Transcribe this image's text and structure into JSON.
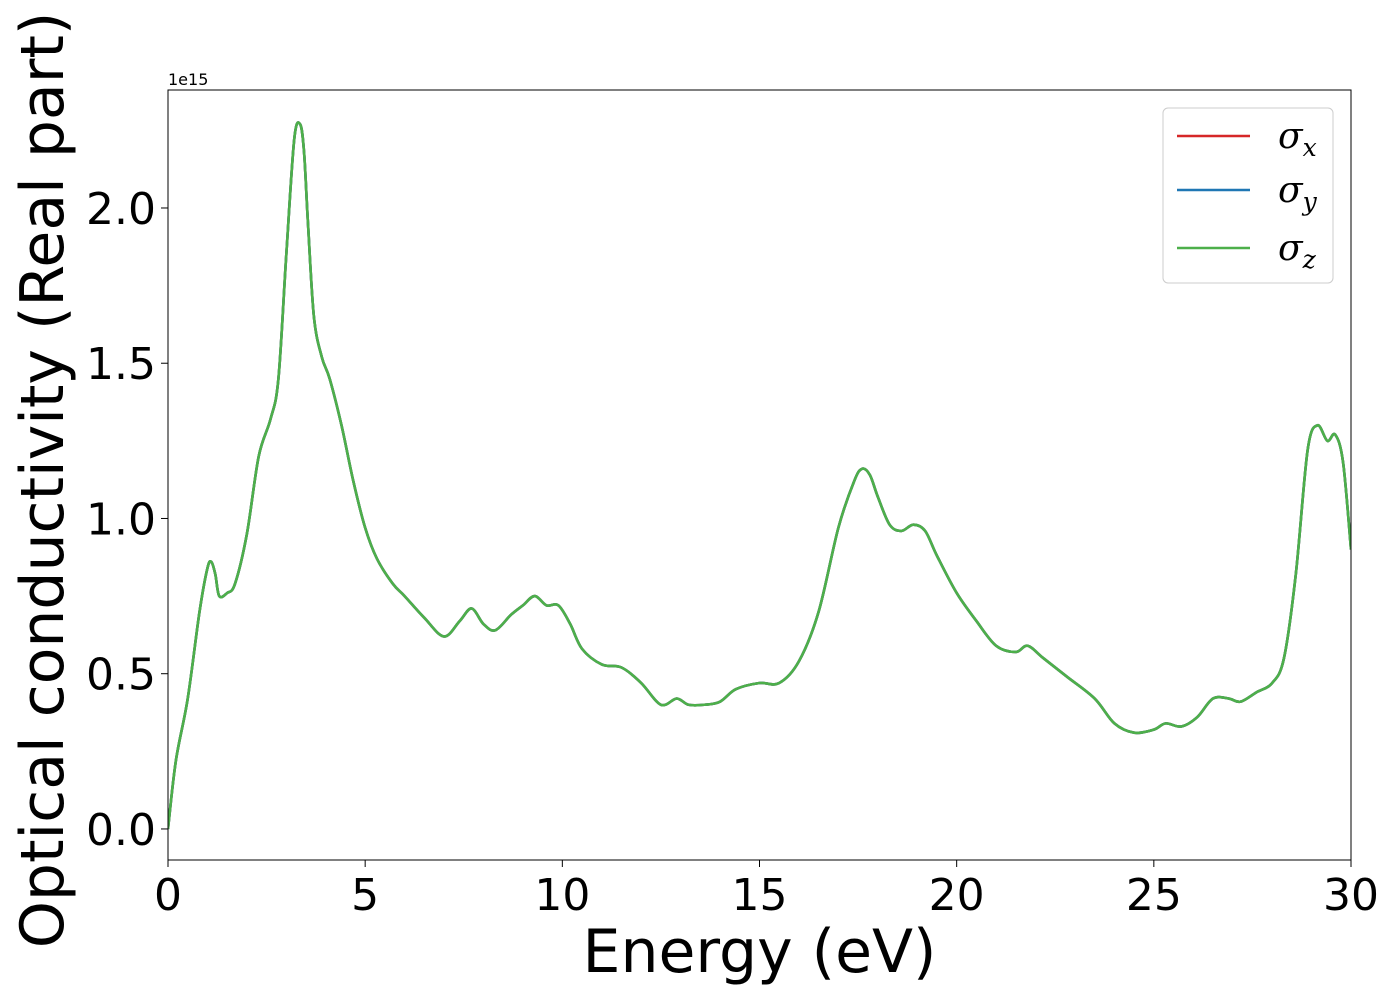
{
  "chart_data": {
    "type": "line",
    "xlabel": "Energy (eV)",
    "ylabel": "Optical conductivity (Real part)",
    "y_offset_label": "1e15",
    "xlim": [
      0,
      30
    ],
    "ylim": [
      -0.1,
      2.38
    ],
    "xticks": [
      0,
      5,
      10,
      15,
      20,
      25,
      30
    ],
    "xtick_labels": [
      "0",
      "5",
      "10",
      "15",
      "20",
      "25",
      "30"
    ],
    "yticks": [
      0.0,
      0.5,
      1.0,
      1.5,
      2.0
    ],
    "ytick_labels": [
      "0.0",
      "0.5",
      "1.0",
      "1.5",
      "2.0"
    ],
    "grid": false,
    "legend_position": "top-right",
    "x": [
      0,
      0.2,
      0.5,
      0.8,
      1.0,
      1.1,
      1.2,
      1.3,
      1.5,
      1.7,
      2.0,
      2.3,
      2.6,
      2.8,
      3.0,
      3.2,
      3.35,
      3.45,
      3.55,
      3.7,
      3.9,
      4.1,
      4.4,
      4.7,
      5.0,
      5.3,
      5.7,
      6.0,
      6.5,
      7.0,
      7.4,
      7.7,
      8.0,
      8.3,
      8.7,
      9.0,
      9.3,
      9.6,
      9.9,
      10.2,
      10.5,
      11.0,
      11.5,
      12.0,
      12.5,
      12.9,
      13.2,
      13.6,
      14.0,
      14.4,
      15.0,
      15.5,
      16.0,
      16.5,
      17.0,
      17.4,
      17.6,
      17.8,
      18.0,
      18.3,
      18.6,
      18.9,
      19.2,
      19.5,
      20.0,
      20.5,
      21.0,
      21.5,
      21.8,
      22.2,
      22.8,
      23.5,
      24.0,
      24.5,
      25.0,
      25.3,
      25.7,
      26.1,
      26.5,
      26.9,
      27.2,
      27.6,
      28.0,
      28.3,
      28.6,
      28.9,
      29.15,
      29.4,
      29.6,
      29.8,
      30.0
    ],
    "y_unit_note": "",
    "series": [
      {
        "name": "σx",
        "color": "#d62728",
        "values": [
          0.0,
          0.22,
          0.42,
          0.7,
          0.84,
          0.86,
          0.82,
          0.75,
          0.76,
          0.79,
          0.95,
          1.2,
          1.32,
          1.45,
          1.85,
          2.22,
          2.27,
          2.18,
          1.95,
          1.65,
          1.52,
          1.45,
          1.3,
          1.12,
          0.97,
          0.87,
          0.79,
          0.75,
          0.68,
          0.62,
          0.67,
          0.71,
          0.66,
          0.64,
          0.69,
          0.72,
          0.75,
          0.72,
          0.72,
          0.66,
          0.58,
          0.53,
          0.52,
          0.47,
          0.4,
          0.42,
          0.4,
          0.4,
          0.41,
          0.45,
          0.47,
          0.47,
          0.54,
          0.7,
          0.97,
          1.12,
          1.16,
          1.14,
          1.07,
          0.98,
          0.96,
          0.98,
          0.96,
          0.88,
          0.76,
          0.67,
          0.59,
          0.57,
          0.59,
          0.55,
          0.49,
          0.42,
          0.34,
          0.31,
          0.32,
          0.34,
          0.33,
          0.36,
          0.42,
          0.42,
          0.41,
          0.44,
          0.47,
          0.55,
          0.82,
          1.22,
          1.3,
          1.25,
          1.27,
          1.18,
          0.9
        ]
      },
      {
        "name": "σy",
        "color": "#1f77b4",
        "values": [
          0.0,
          0.22,
          0.42,
          0.7,
          0.84,
          0.86,
          0.82,
          0.75,
          0.76,
          0.79,
          0.95,
          1.2,
          1.32,
          1.45,
          1.85,
          2.22,
          2.27,
          2.18,
          1.95,
          1.65,
          1.52,
          1.45,
          1.3,
          1.12,
          0.97,
          0.87,
          0.79,
          0.75,
          0.68,
          0.62,
          0.67,
          0.71,
          0.66,
          0.64,
          0.69,
          0.72,
          0.75,
          0.72,
          0.72,
          0.66,
          0.58,
          0.53,
          0.52,
          0.47,
          0.4,
          0.42,
          0.4,
          0.4,
          0.41,
          0.45,
          0.47,
          0.47,
          0.54,
          0.7,
          0.97,
          1.12,
          1.16,
          1.14,
          1.07,
          0.98,
          0.96,
          0.98,
          0.96,
          0.88,
          0.76,
          0.67,
          0.59,
          0.57,
          0.59,
          0.55,
          0.49,
          0.42,
          0.34,
          0.31,
          0.32,
          0.34,
          0.33,
          0.36,
          0.42,
          0.42,
          0.41,
          0.44,
          0.47,
          0.55,
          0.82,
          1.22,
          1.3,
          1.25,
          1.27,
          1.18,
          0.9
        ]
      },
      {
        "name": "σz",
        "color": "#4daf4a",
        "values": [
          0.0,
          0.22,
          0.42,
          0.7,
          0.84,
          0.86,
          0.82,
          0.75,
          0.76,
          0.79,
          0.95,
          1.2,
          1.32,
          1.45,
          1.85,
          2.22,
          2.27,
          2.18,
          1.95,
          1.65,
          1.52,
          1.45,
          1.3,
          1.12,
          0.97,
          0.87,
          0.79,
          0.75,
          0.68,
          0.62,
          0.67,
          0.71,
          0.66,
          0.64,
          0.69,
          0.72,
          0.75,
          0.72,
          0.72,
          0.66,
          0.58,
          0.53,
          0.52,
          0.47,
          0.4,
          0.42,
          0.4,
          0.4,
          0.41,
          0.45,
          0.47,
          0.47,
          0.54,
          0.7,
          0.97,
          1.12,
          1.16,
          1.14,
          1.07,
          0.98,
          0.96,
          0.98,
          0.96,
          0.88,
          0.76,
          0.67,
          0.59,
          0.57,
          0.59,
          0.55,
          0.49,
          0.42,
          0.34,
          0.31,
          0.32,
          0.34,
          0.33,
          0.36,
          0.42,
          0.42,
          0.41,
          0.44,
          0.47,
          0.55,
          0.82,
          1.22,
          1.3,
          1.25,
          1.27,
          1.18,
          0.9
        ]
      }
    ],
    "legend": [
      {
        "symbol": "σ",
        "sub": "x",
        "color": "#d62728"
      },
      {
        "symbol": "σ",
        "sub": "y",
        "color": "#1f77b4"
      },
      {
        "symbol": "σ",
        "sub": "z",
        "color": "#4daf4a"
      }
    ]
  }
}
